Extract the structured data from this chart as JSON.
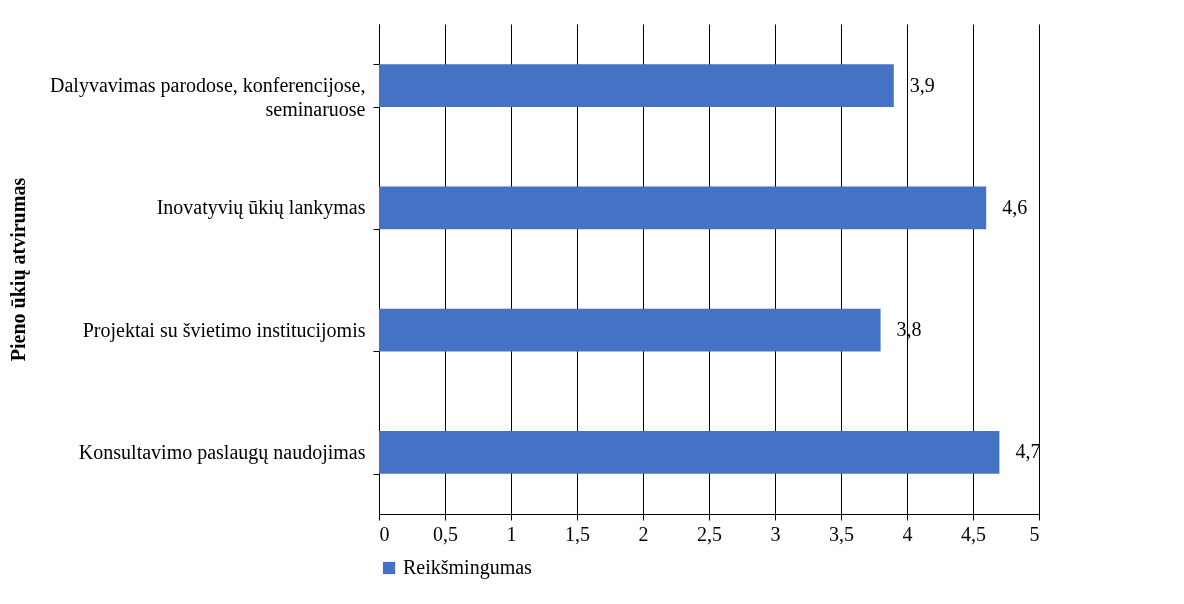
{
  "chart_data": {
    "type": "bar",
    "orientation": "horizontal",
    "ylabel": "Pieno ūkių atvirumas",
    "categories": [
      "Dalyvavimas parodose, konferencijose, seminaruose",
      "Inovatyvių ūkių lankymas",
      "Projektai su švietimo institucijomis",
      "Konsultavimo paslaugų naudojimas"
    ],
    "series": [
      {
        "name": "Reikšmingumas",
        "color": "#4472c4",
        "values": [
          3.9,
          4.6,
          3.8,
          4.7
        ],
        "value_labels": [
          "3,9",
          "4,6",
          "3,8",
          "4,7"
        ]
      }
    ],
    "xlim": [
      0,
      5
    ],
    "xticks": [
      0,
      {
        "value": 0.5,
        "label": "0,5"
      },
      1,
      {
        "value": 1.5,
        "label": "1,5"
      },
      2,
      {
        "value": 2.5,
        "label": "2,5"
      },
      3,
      {
        "value": 3.5,
        "label": "3,5"
      },
      4,
      {
        "value": 4.5,
        "label": "4,5"
      },
      5
    ],
    "grid": "x",
    "legend": "bottom left"
  }
}
